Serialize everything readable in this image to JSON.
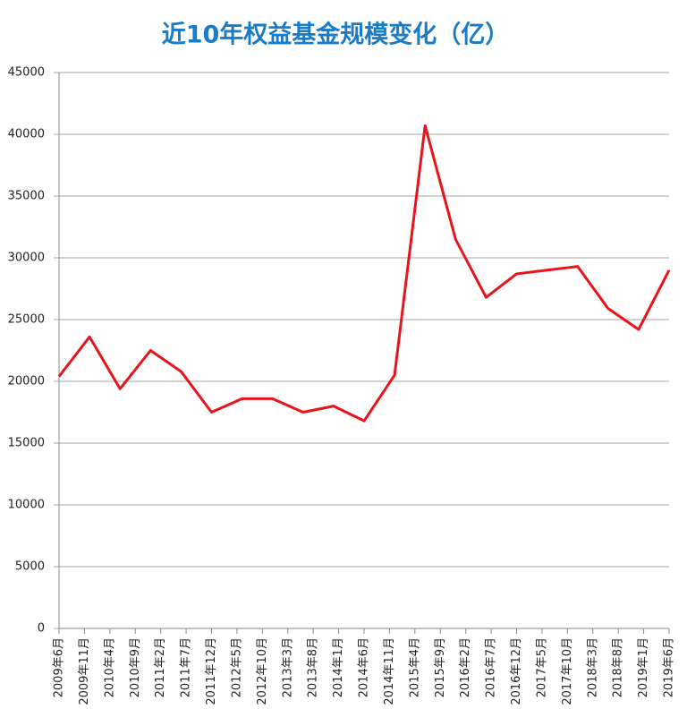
{
  "chart_data": {
    "type": "line",
    "title": "近10年权益基金规模变化（亿）",
    "x": [
      0,
      6,
      12,
      18,
      24,
      30,
      36,
      42,
      48,
      54,
      60,
      66,
      72,
      78,
      84,
      90,
      96,
      102,
      108,
      114,
      120
    ],
    "series": [
      {
        "name": "权益基金规模",
        "color": "#e8141b",
        "values": [
          20400,
          23600,
          19400,
          22500,
          20800,
          17500,
          18600,
          18600,
          17500,
          18000,
          16800,
          20500,
          40700,
          31500,
          26800,
          28700,
          29000,
          29300,
          25900,
          24200,
          29000
        ]
      }
    ],
    "xlim": [
      0,
      120
    ],
    "xticks": [
      {
        "value": 0,
        "label": "2009年6月"
      },
      {
        "value": 5,
        "label": "2009年11月"
      },
      {
        "value": 10,
        "label": "2010年4月"
      },
      {
        "value": 15,
        "label": "2010年9月"
      },
      {
        "value": 20,
        "label": "2011年2月"
      },
      {
        "value": 25,
        "label": "2011年7月"
      },
      {
        "value": 30,
        "label": "2011年12月"
      },
      {
        "value": 35,
        "label": "2012年5月"
      },
      {
        "value": 40,
        "label": "2012年10月"
      },
      {
        "value": 45,
        "label": "2013年3月"
      },
      {
        "value": 50,
        "label": "2013年8月"
      },
      {
        "value": 55,
        "label": "2014年1月"
      },
      {
        "value": 60,
        "label": "2014年6月"
      },
      {
        "value": 65,
        "label": "2014年11月"
      },
      {
        "value": 70,
        "label": "2015年4月"
      },
      {
        "value": 75,
        "label": "2015年9月"
      },
      {
        "value": 80,
        "label": "2016年2月"
      },
      {
        "value": 85,
        "label": "2016年7月"
      },
      {
        "value": 90,
        "label": "2016年12月"
      },
      {
        "value": 95,
        "label": "2017年5月"
      },
      {
        "value": 100,
        "label": "2017年10月"
      },
      {
        "value": 105,
        "label": "2018年3月"
      },
      {
        "value": 110,
        "label": "2018年8月"
      },
      {
        "value": 115,
        "label": "2019年1月"
      },
      {
        "value": 120,
        "label": "2019年6月"
      }
    ],
    "ylim": [
      0,
      45000
    ],
    "yticks": [
      0,
      5000,
      10000,
      15000,
      20000,
      25000,
      30000,
      35000,
      40000,
      45000
    ],
    "grid": true
  }
}
